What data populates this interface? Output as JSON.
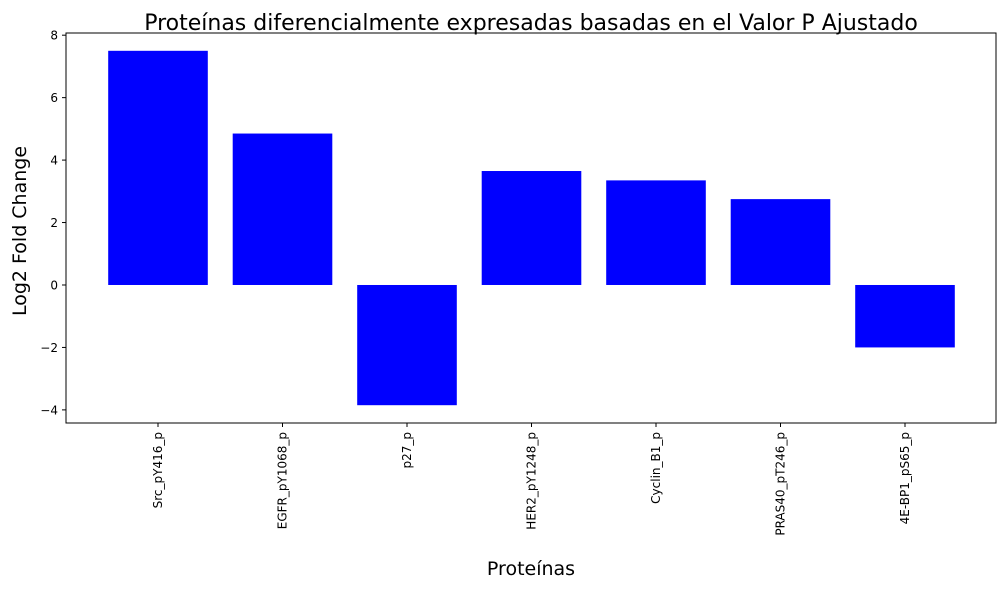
{
  "chart_data": {
    "type": "bar",
    "title": "Proteínas diferencialmente expresadas basadas en el Valor P Ajustado",
    "xlabel": "Proteínas",
    "ylabel": "Log2 Fold Change",
    "categories": [
      "Src_pY416_p",
      "EGFR_pY1068_p",
      "p27_p",
      "HER2_pY1248_p",
      "Cyclin_B1_p",
      "PRAS40_pT246_p",
      "4E-BP1_pS65_p"
    ],
    "values": [
      7.5,
      4.85,
      -3.85,
      3.65,
      3.35,
      2.75,
      -2.0
    ],
    "ylim": [
      -4.42,
      8.07
    ],
    "yticks": [
      -4,
      -2,
      0,
      2,
      4,
      6,
      8
    ],
    "ytick_labels": [
      "−4",
      "−2",
      "0",
      "2",
      "4",
      "6",
      "8"
    ],
    "bar_color": "#0000ff",
    "grid": false,
    "legend": "none"
  }
}
